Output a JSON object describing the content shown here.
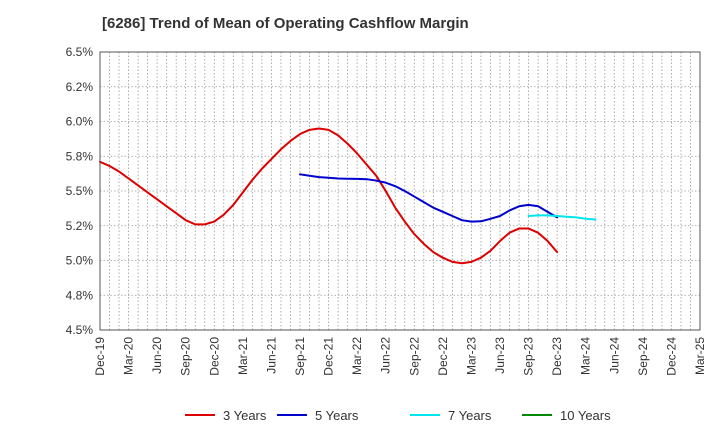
{
  "chart_data": {
    "type": "line",
    "title": "[6286]  Trend of Mean of Operating Cashflow Margin",
    "xlabel": "",
    "ylabel": "",
    "x_ticks": [
      "Dec-19",
      "Mar-20",
      "Jun-20",
      "Sep-20",
      "Dec-20",
      "Mar-21",
      "Jun-21",
      "Sep-21",
      "Dec-21",
      "Mar-22",
      "Jun-22",
      "Sep-22",
      "Dec-22",
      "Mar-23",
      "Jun-23",
      "Sep-23",
      "Dec-23",
      "Mar-24",
      "Jun-24",
      "Sep-24",
      "Dec-24",
      "Mar-25"
    ],
    "y_ticks": [
      "4.5%",
      "4.8%",
      "5.0%",
      "5.2%",
      "5.5%",
      "5.8%",
      "6.0%",
      "6.2%",
      "6.5%"
    ],
    "ylim": [
      4.5,
      6.5
    ],
    "grid": true,
    "legend_position": "bottom",
    "series": [
      {
        "name": "3 Years",
        "color": "#dd0000",
        "start_index": 0,
        "values": [
          5.71,
          5.68,
          5.64,
          5.59,
          5.54,
          5.49,
          5.44,
          5.39,
          5.34,
          5.29,
          5.26,
          5.26,
          5.28,
          5.33,
          5.4,
          5.49,
          5.58,
          5.66,
          5.73,
          5.8,
          5.86,
          5.91,
          5.94,
          5.95,
          5.94,
          5.9,
          5.84,
          5.77,
          5.69,
          5.61,
          5.5,
          5.38,
          5.28,
          5.19,
          5.12,
          5.06,
          5.02,
          4.99,
          4.98,
          4.99,
          5.02,
          5.07,
          5.14,
          5.2,
          5.23,
          5.23,
          5.2,
          5.14,
          5.06
        ]
      },
      {
        "name": "5 Years",
        "color": "#0000cc",
        "start_index": 21,
        "values": [
          5.62,
          5.61,
          5.6,
          5.595,
          5.59,
          5.588,
          5.587,
          5.585,
          5.575,
          5.56,
          5.535,
          5.5,
          5.46,
          5.42,
          5.38,
          5.35,
          5.32,
          5.29,
          5.28,
          5.282,
          5.3,
          5.32,
          5.36,
          5.39,
          5.4,
          5.39,
          5.35,
          5.31
        ]
      },
      {
        "name": "7 Years",
        "color": "#00e5ee",
        "start_index": 45,
        "values": [
          5.32,
          5.325,
          5.325,
          5.32,
          5.315,
          5.31,
          5.3,
          5.295
        ]
      },
      {
        "name": "10 Years",
        "color": "#008800",
        "start_index": 0,
        "values": []
      }
    ]
  }
}
